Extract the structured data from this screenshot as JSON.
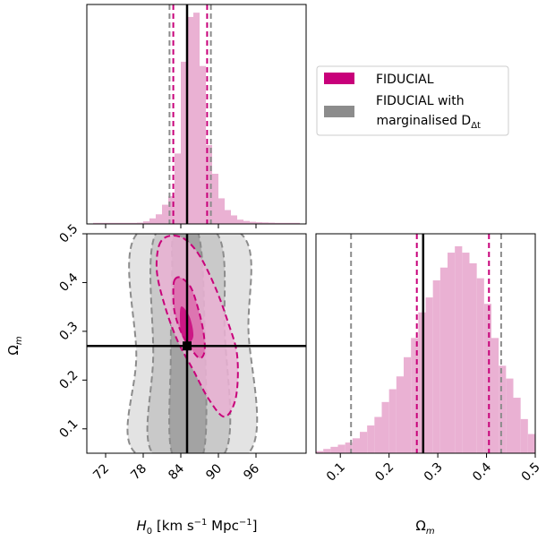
{
  "chart_data": {
    "type": "corner",
    "colors": {
      "fiducial": "#c8007a",
      "fiducial_light": "#eab1d3",
      "marg_dark": "#8c8c8c",
      "marg_light": "#e3e3e3",
      "truth": "#000000"
    },
    "legend": {
      "placement": "top-right",
      "entries": [
        {
          "label": "FIDUCIAL",
          "color": "#c8007a"
        },
        {
          "label_line1": "FIDUCIAL with",
          "label_line2": " marginalised D",
          "label_sub": "Δt",
          "color": "#8c8c8c"
        }
      ]
    },
    "x_param": {
      "label_main": "H",
      "label_sub": "0",
      "label_unit_pre": " [km s",
      "label_unit_sup1": "−1",
      "label_unit_mid": " Mpc",
      "label_unit_sup2": "−1",
      "label_unit_post": "]"
    },
    "y_param": {
      "label_main": "Ω",
      "label_sub": "m"
    },
    "truth": {
      "H0": 85.0,
      "Om": 0.27
    },
    "H0_hist": {
      "xlim": [
        69,
        104
      ],
      "ticks": [
        "72",
        "78",
        "84",
        "90",
        "96"
      ],
      "tick_values": [
        72,
        78,
        84,
        90,
        96
      ],
      "bin_width": 1,
      "density_edges": [
        70,
        71,
        72,
        73,
        74,
        75,
        76,
        77,
        78,
        79,
        80,
        81,
        82,
        83,
        84,
        85,
        86,
        87,
        88,
        89,
        90,
        91,
        92,
        93,
        94,
        95,
        96,
        97,
        98,
        99,
        100,
        101,
        102,
        103
      ],
      "density_values": [
        0.005,
        0.005,
        0.005,
        0.005,
        0.005,
        0.005,
        0.005,
        0.006,
        0.012,
        0.026,
        0.045,
        0.09,
        0.13,
        0.33,
        0.76,
        0.97,
        0.99,
        0.74,
        0.37,
        0.235,
        0.12,
        0.065,
        0.04,
        0.02,
        0.014,
        0.01,
        0.008,
        0.007,
        0.006,
        0.005,
        0.005,
        0.005,
        0.005
      ],
      "fiducial_quantiles": [
        82.8,
        88.2
      ],
      "marg_quantiles": [
        82.2,
        88.8
      ]
    },
    "Om_hist": {
      "xlim": [
        0.05,
        0.5
      ],
      "ticks": [
        "0.1",
        "0.2",
        "0.3",
        "0.4",
        "0.5"
      ],
      "tick_values": [
        0.1,
        0.2,
        0.3,
        0.4,
        0.5
      ],
      "bin_width": 0.015,
      "density_values": [
        0.01,
        0.02,
        0.03,
        0.04,
        0.05,
        0.07,
        0.1,
        0.13,
        0.17,
        0.24,
        0.3,
        0.36,
        0.45,
        0.54,
        0.66,
        0.73,
        0.81,
        0.87,
        0.94,
        0.97,
        0.94,
        0.89,
        0.82,
        0.7,
        0.54,
        0.41,
        0.35,
        0.26,
        0.16,
        0.09
      ],
      "fiducial_quantiles": [
        0.257,
        0.405
      ],
      "marg_quantiles": [
        0.122,
        0.43
      ]
    },
    "joint": {
      "xlim": [
        69,
        104
      ],
      "ylim": [
        0.05,
        0.5
      ],
      "x_ticks": [
        "72",
        "78",
        "84",
        "90",
        "96"
      ],
      "x_tick_values": [
        72,
        78,
        84,
        90,
        96
      ],
      "y_ticks": [
        "0.1",
        "0.2",
        "0.3",
        "0.4",
        "0.5"
      ],
      "y_tick_values": [
        0.1,
        0.2,
        0.3,
        0.4,
        0.5
      ],
      "fiducial_1sigma": [
        [
          83.0,
          0.405
        ],
        [
          84.0,
          0.41
        ],
        [
          85.6,
          0.39
        ],
        [
          86.8,
          0.345
        ],
        [
          87.6,
          0.3
        ],
        [
          87.8,
          0.26
        ],
        [
          87.0,
          0.245
        ],
        [
          85.6,
          0.265
        ],
        [
          84.0,
          0.3
        ],
        [
          83.0,
          0.34
        ],
        [
          82.8,
          0.38
        ]
      ],
      "fiducial_2sigma": [
        [
          80.5,
          0.475
        ],
        [
          82.0,
          0.495
        ],
        [
          84.5,
          0.49
        ],
        [
          87.0,
          0.455
        ],
        [
          89.5,
          0.39
        ],
        [
          91.5,
          0.32
        ],
        [
          93.0,
          0.25
        ],
        [
          92.8,
          0.165
        ],
        [
          91.0,
          0.125
        ],
        [
          88.5,
          0.16
        ],
        [
          86.0,
          0.22
        ],
        [
          83.5,
          0.28
        ],
        [
          81.5,
          0.35
        ],
        [
          80.2,
          0.42
        ]
      ],
      "marg_1sigma": [
        [
          83.0,
          0.5
        ],
        [
          86.8,
          0.5
        ],
        [
          87.8,
          0.3
        ],
        [
          87.6,
          0.05
        ],
        [
          82.6,
          0.05
        ],
        [
          82.4,
          0.25
        ],
        [
          82.6,
          0.42
        ]
      ],
      "marg_2sigma": [
        [
          80.0,
          0.5
        ],
        [
          89.8,
          0.5
        ],
        [
          91.0,
          0.3
        ],
        [
          91.0,
          0.05
        ],
        [
          79.5,
          0.05
        ],
        [
          79.6,
          0.25
        ]
      ],
      "marg_3sigma": [
        [
          77.0,
          0.5
        ],
        [
          93.6,
          0.5
        ],
        [
          94.8,
          0.3
        ],
        [
          94.8,
          0.05
        ],
        [
          76.8,
          0.05
        ],
        [
          76.9,
          0.25
        ]
      ],
      "fiducial_dense_core": [
        [
          84.0,
          0.35
        ],
        [
          85.4,
          0.33
        ],
        [
          86.0,
          0.29
        ],
        [
          85.0,
          0.275
        ],
        [
          84.0,
          0.3
        ]
      ]
    }
  }
}
